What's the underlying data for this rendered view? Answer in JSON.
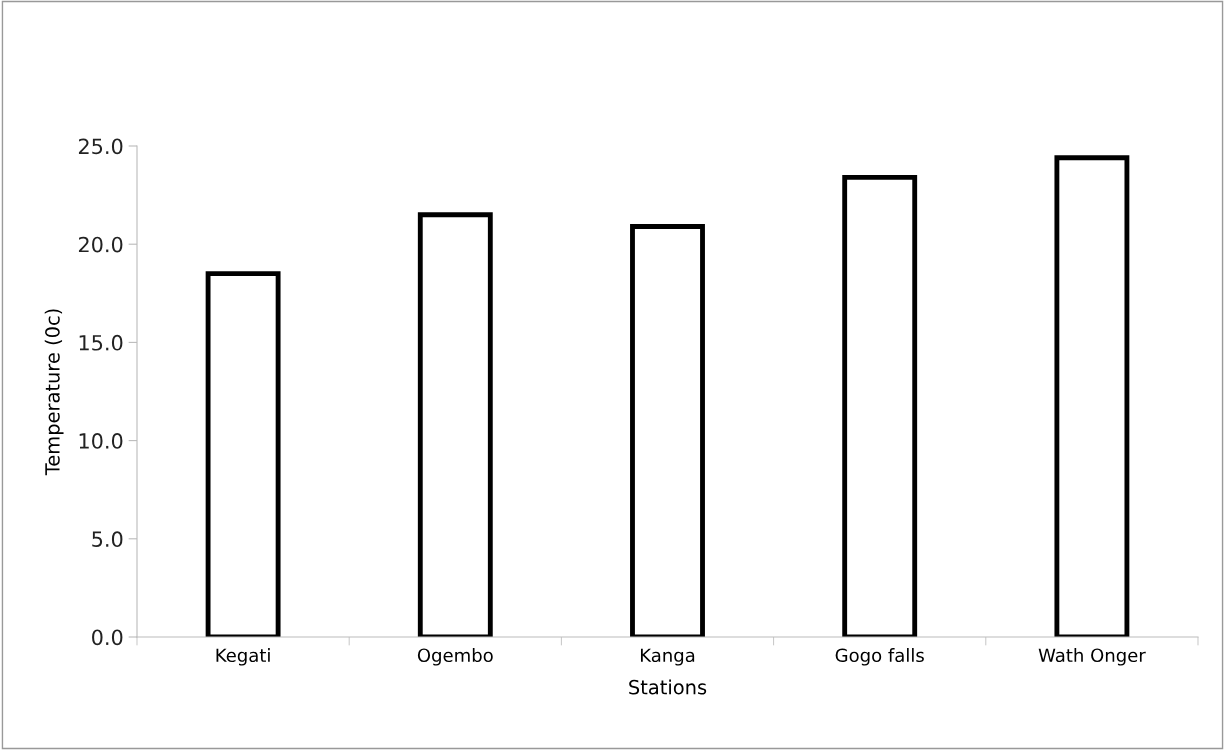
{
  "chart_data": {
    "type": "bar",
    "xlabel": "Stations",
    "ylabel": "Temperature (0c)",
    "categories": [
      "Kegati",
      "Ogembo",
      "Kanga",
      "Gogo falls",
      "Wath Onger"
    ],
    "values": [
      18.5,
      21.5,
      20.9,
      23.4,
      24.4
    ],
    "color": "#000000",
    "ylim": [
      0,
      25
    ],
    "yticks": [
      {
        "value": 0,
        "label": "0.0"
      },
      {
        "value": 5,
        "label": "5.0"
      },
      {
        "value": 10,
        "label": "10.0"
      },
      {
        "value": 15,
        "label": "15.0"
      },
      {
        "value": 20,
        "label": "20.0"
      },
      {
        "value": 25,
        "label": "25.0"
      }
    ],
    "grid": false,
    "legend": false
  }
}
